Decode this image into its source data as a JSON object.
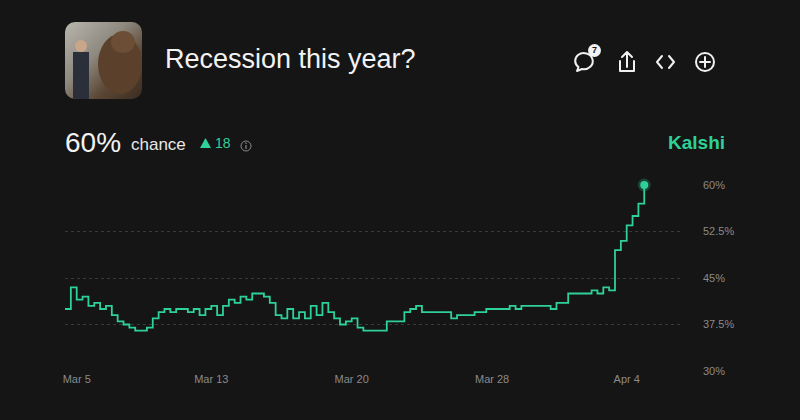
{
  "header": {
    "title": "Recession this year?",
    "probability": "60%",
    "chance": "chance",
    "change": "18",
    "brand": "Kalshi",
    "comments": "7"
  },
  "chart_data": {
    "type": "line",
    "color": "#2ed197",
    "line_style": "step",
    "grid": true,
    "categories": [
      null,
      null,
      "Mar 5",
      null,
      null,
      null,
      null,
      null,
      null,
      null,
      null,
      null,
      null,
      null,
      null,
      null,
      null,
      null,
      null,
      null,
      null,
      null,
      null,
      null,
      null,
      "Mar 13",
      null,
      null,
      null,
      null,
      null,
      null,
      null,
      null,
      null,
      null,
      null,
      null,
      null,
      null,
      null,
      null,
      null,
      null,
      null,
      null,
      null,
      null,
      null,
      "Mar 20",
      null,
      null,
      null,
      null,
      null,
      null,
      null,
      null,
      null,
      null,
      null,
      null,
      null,
      null,
      null,
      null,
      null,
      null,
      null,
      null,
      null,
      null,
      null,
      "Mar 28",
      null,
      null,
      null,
      null,
      null,
      null,
      null,
      null,
      null,
      null,
      null,
      null,
      null,
      null,
      null,
      null,
      null,
      null,
      null,
      null,
      null,
      null,
      "Apr 4",
      null,
      null,
      null
    ],
    "values": [
      40,
      43.5,
      41.5,
      42,
      40.5,
      41,
      40,
      40.5,
      39,
      38,
      37.5,
      37,
      36.5,
      36.5,
      37,
      38.5,
      39.5,
      40,
      39.5,
      40,
      40,
      39.5,
      40,
      39,
      40,
      40.5,
      39,
      40.5,
      41.5,
      41,
      42,
      41.5,
      42.5,
      42.5,
      42,
      41,
      39,
      38.5,
      40,
      38.5,
      39.5,
      38.5,
      40.5,
      39,
      41,
      39.5,
      38.5,
      37.5,
      38,
      38.5,
      37,
      36.5,
      36.5,
      36.5,
      36.5,
      38,
      38,
      38,
      39.5,
      40,
      40.5,
      39.5,
      39.5,
      39.5,
      39.5,
      39.5,
      38.5,
      39,
      39,
      39,
      39.5,
      39.5,
      40,
      40,
      40,
      40,
      40.5,
      40,
      40.5,
      40.5,
      40.5,
      40.5,
      40.5,
      40,
      41,
      41,
      42.5,
      42.5,
      42.5,
      42.5,
      43,
      42.5,
      43.5,
      43,
      49.5,
      51,
      53.5,
      55,
      57,
      60
    ],
    "ylim": [
      30,
      60
    ],
    "yticks": [
      {
        "value": 30,
        "label": "30%"
      },
      {
        "value": 37.5,
        "label": "37.5%"
      },
      {
        "value": 45,
        "label": "45%"
      },
      {
        "value": 52.5,
        "label": "52.5%"
      },
      {
        "value": 60,
        "label": "60%"
      }
    ]
  }
}
